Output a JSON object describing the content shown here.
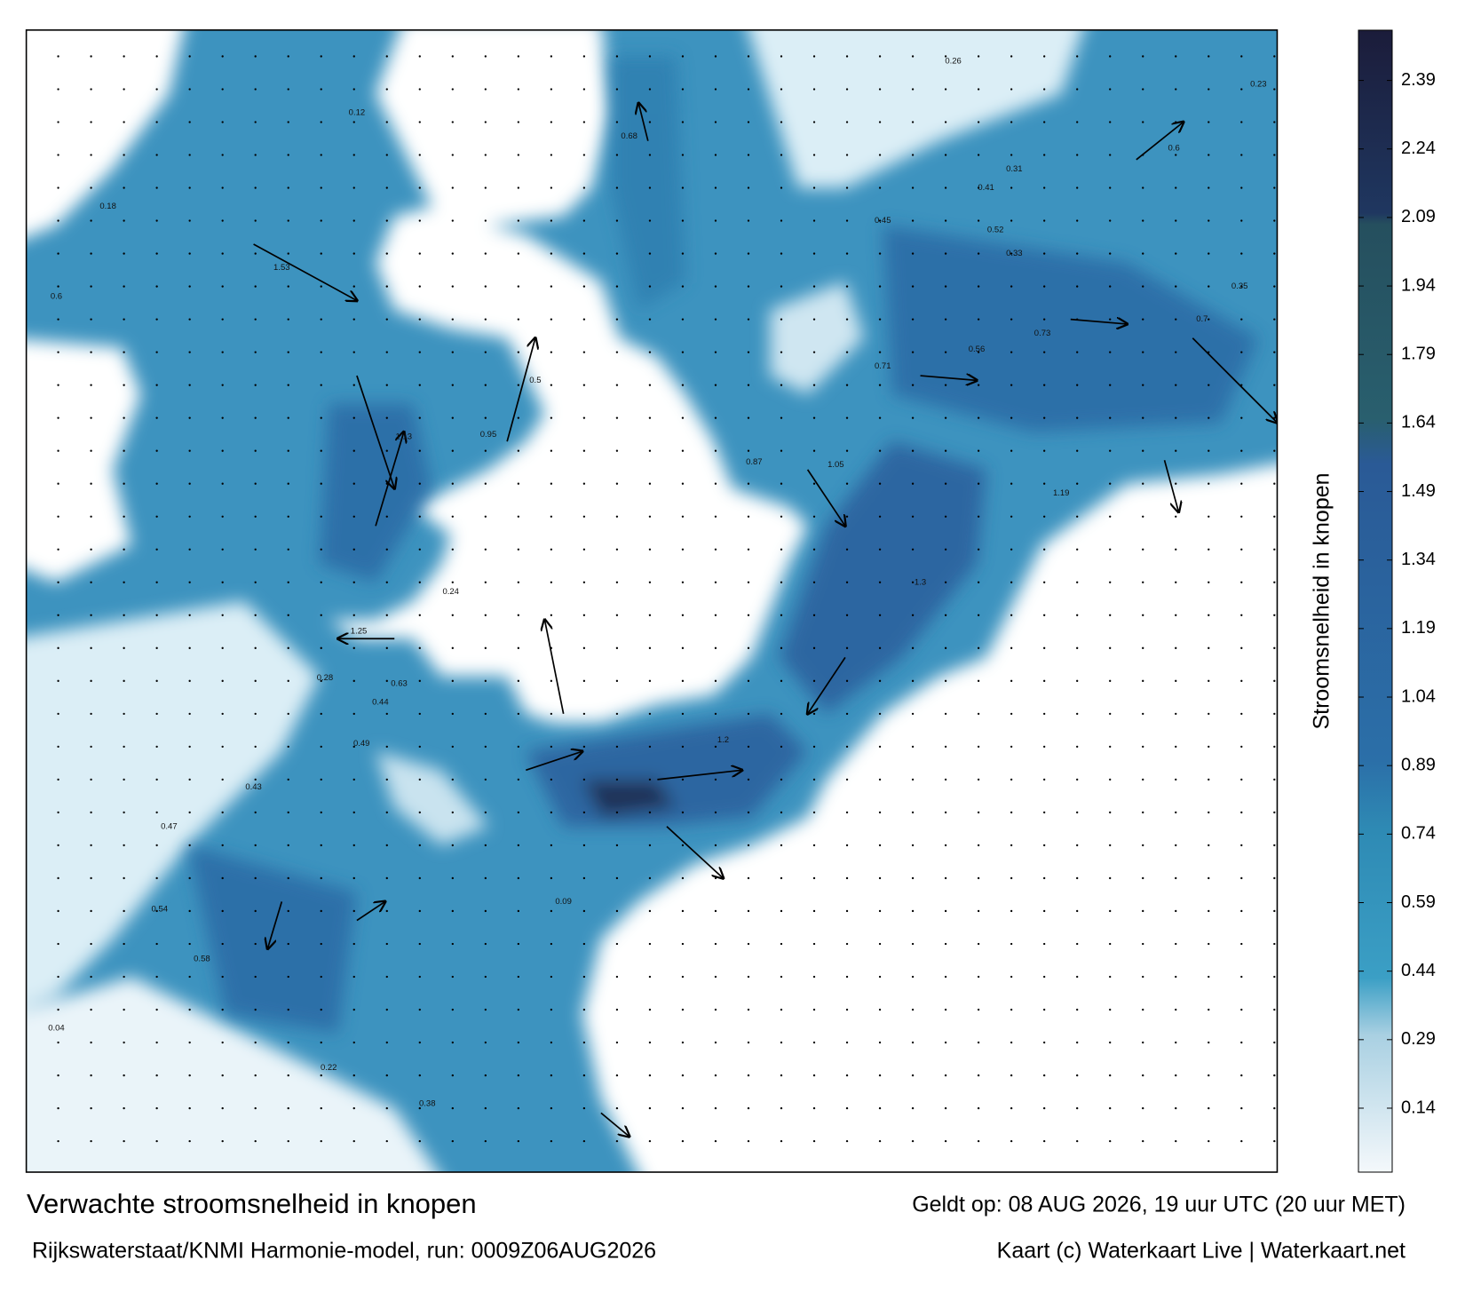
{
  "map": {
    "title": "Verwachte stroomsnelheid in knopen",
    "model": "Rijkswaterstaat/KNMI Harmonie-model, run: 0009Z06AUG2026",
    "valid": "Geldt op: 08 AUG 2026, 19 uur UTC (20 uur MET)",
    "credit": "Kaart (c) Waterkaart Live | Waterkaart.net",
    "colorbar": {
      "label": "Stroomsnelheid in knopen",
      "lim": [
        0,
        2.5
      ],
      "ticks": [
        0.14,
        0.29,
        0.44,
        0.59,
        0.74,
        0.89,
        1.04,
        1.19,
        1.34,
        1.49,
        1.64,
        1.79,
        1.94,
        2.09,
        2.24,
        2.39
      ]
    },
    "speed_labels": [
      0.95,
      1.53,
      0.73,
      1.19,
      1.13,
      0.54,
      0.5,
      0.63,
      1.25,
      0.28,
      0.44,
      0.68,
      0.71,
      1.2,
      0.6,
      0.56,
      0.41,
      0.23,
      0.38,
      0.45,
      0.31,
      0.09,
      0.12,
      0.04,
      0.87,
      1.05,
      1.3,
      0.26,
      0.49,
      0.33,
      0.7,
      0.24,
      0.6,
      0.58,
      0.35,
      0.47,
      0.22,
      0.18,
      0.43,
      0.52
    ]
  }
}
